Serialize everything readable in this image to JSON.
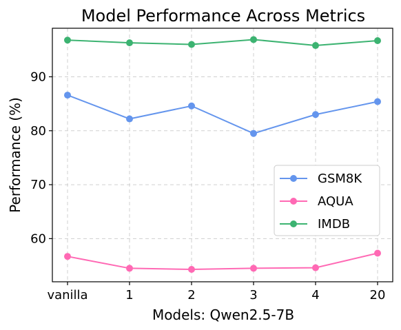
{
  "chart_data": {
    "type": "line",
    "title": "Model Performance Across Metrics",
    "xlabel": "Models: Qwen2.5-7B",
    "ylabel": "Performance (%)",
    "categories": [
      "vanilla",
      "1",
      "2",
      "3",
      "4",
      "20"
    ],
    "ylim": [
      52,
      99
    ],
    "yticks": [
      60,
      70,
      80,
      90
    ],
    "grid": true,
    "legend_position": "center-right",
    "series": [
      {
        "name": "GSM8K",
        "color": "#6495ed",
        "values": [
          86.6,
          82.2,
          84.6,
          79.5,
          83.0,
          85.4
        ]
      },
      {
        "name": "AQUA",
        "color": "#ff69b4",
        "values": [
          56.7,
          54.5,
          54.3,
          54.5,
          54.6,
          57.3
        ]
      },
      {
        "name": "IMDB",
        "color": "#3cb371",
        "values": [
          96.8,
          96.3,
          96.0,
          96.9,
          95.8,
          96.7
        ]
      }
    ]
  }
}
